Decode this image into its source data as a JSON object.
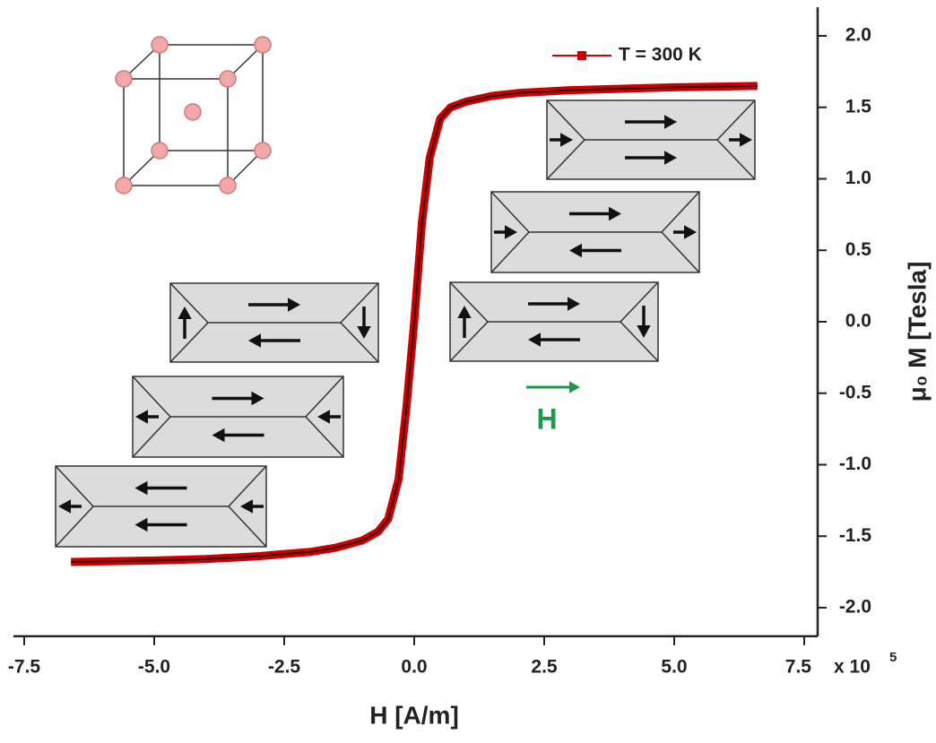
{
  "chart_data": {
    "type": "line",
    "x_label": "H [A/m]",
    "y_label": "μ₀ M [Tesla]",
    "x_multiplier": {
      "base": "x 10",
      "exponent": "5"
    },
    "field_label": "H",
    "field_color": "#1a9a4a",
    "xlim": [
      -7.7,
      7.75
    ],
    "ylim": [
      -2.2,
      2.2
    ],
    "xticks": [
      {
        "value": -7.5,
        "label": "-7.5"
      },
      {
        "value": -5,
        "label": "-5.0"
      },
      {
        "value": -2.5,
        "label": "-2.5"
      },
      {
        "value": 0,
        "label": "0.0"
      },
      {
        "value": 2.5,
        "label": "2.5"
      },
      {
        "value": 5,
        "label": "5.0"
      },
      {
        "value": 7.5,
        "label": "7.5"
      }
    ],
    "yticks": [
      {
        "value": 2,
        "label": "2.0"
      },
      1.5,
      {
        "value": 1,
        "label": "1.0"
      },
      0.5,
      {
        "value": 0,
        "label": "0.0"
      },
      -0.5,
      {
        "value": -1,
        "label": "-1.0"
      },
      -1.5,
      {
        "value": -2,
        "label": "-2.0"
      }
    ],
    "legend_position": "upper right",
    "series": [
      {
        "name": "T = 300 K",
        "color": "#cc0000",
        "x": [
          -6.6,
          -5,
          -4,
          -3,
          -2,
          -1.5,
          -1,
          -0.7,
          -0.5,
          -0.3,
          -0.15,
          0,
          0.15,
          0.3,
          0.5,
          0.7,
          1,
          1.5,
          2,
          3,
          4,
          5,
          6.6
        ],
        "values": [
          -1.68,
          -1.67,
          -1.66,
          -1.64,
          -1.61,
          -1.58,
          -1.53,
          -1.47,
          -1.38,
          -1.1,
          -0.6,
          0,
          0.7,
          1.15,
          1.42,
          1.5,
          1.54,
          1.58,
          1.6,
          1.62,
          1.63,
          1.64,
          1.65
        ]
      }
    ]
  }
}
